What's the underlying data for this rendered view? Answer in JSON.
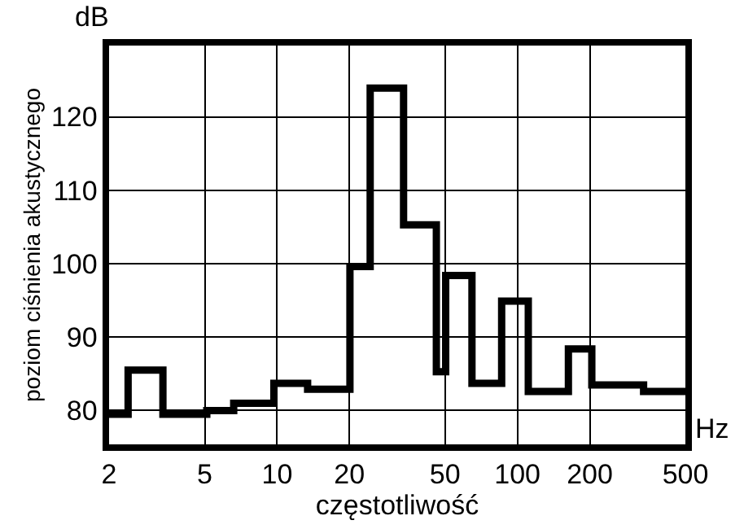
{
  "chart_data": {
    "type": "step",
    "xlabel": "częstotliwość",
    "ylabel": "poziom ciśnienia akustycznego",
    "annotations": [
      "dB",
      "Hz"
    ],
    "x": [
      2,
      2.4,
      3.35,
      5.1,
      6.6,
      9.7,
      13.4,
      20.1,
      24.4,
      33.6,
      46,
      50.3,
      64.7,
      86,
      111,
      163,
      204,
      335,
      500
    ],
    "series": [
      {
        "color": "#000000",
        "values": [
          79.5,
          85.5,
          79.5,
          80,
          81,
          83.7,
          82.9,
          99.6,
          123.9,
          105.3,
          85.3,
          98.4,
          83.7,
          94.9,
          82.6,
          88.4,
          83.5,
          82.6,
          82.6
        ]
      }
    ],
    "log": "x",
    "xlim": [
      2,
      500
    ],
    "xticks": [
      2,
      5,
      10,
      20,
      50,
      100,
      200,
      500
    ],
    "ylim": [
      75.4,
      129.7
    ],
    "yticks": [
      80,
      90,
      100,
      110,
      120
    ],
    "grid": true,
    "legend": false,
    "marker": "none",
    "line_style": "solid"
  }
}
